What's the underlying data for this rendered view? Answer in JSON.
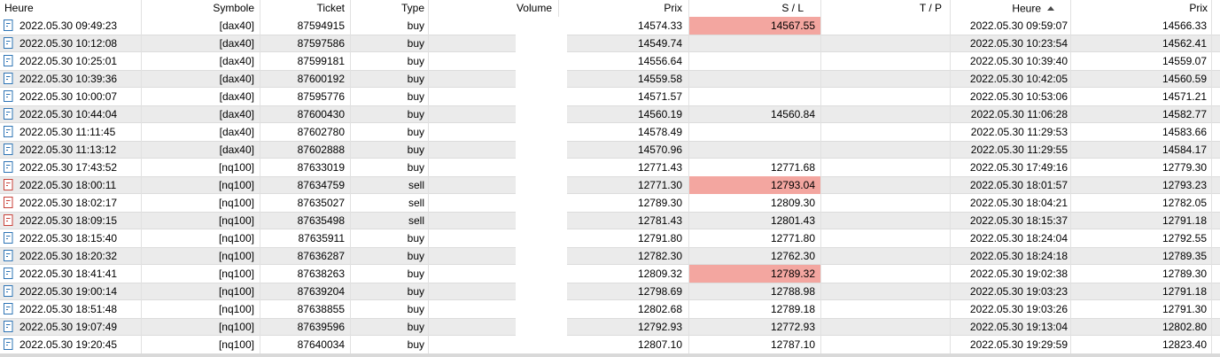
{
  "columns": [
    {
      "label": "Heure"
    },
    {
      "label": "Symbole"
    },
    {
      "label": "Ticket"
    },
    {
      "label": "Type"
    },
    {
      "label": "Volume"
    },
    {
      "label": "Prix"
    },
    {
      "label": "S / L"
    },
    {
      "label": "T / P"
    },
    {
      "label": "Heure",
      "sort": "asc"
    },
    {
      "label": "Prix"
    }
  ],
  "colors": {
    "buy_icon": "#2e74b5",
    "sell_icon": "#c8423a",
    "sl_highlight": "#f3a6a0",
    "stripe": "#ebebeb"
  },
  "rows": [
    {
      "icon": "buy-deal-icon",
      "time_open": "2022.05.30 09:49:23",
      "symbol": "[dax40]",
      "ticket": "87594915",
      "type": "buy",
      "volume": "",
      "price_open": "14574.33",
      "sl": "14567.55",
      "sl_highlight": true,
      "tp": "",
      "time_close": "2022.05.30 09:59:07",
      "price_close": "14566.33"
    },
    {
      "icon": "buy-deal-icon",
      "time_open": "2022.05.30 10:12:08",
      "symbol": "[dax40]",
      "ticket": "87597586",
      "type": "buy",
      "volume": "",
      "price_open": "14549.74",
      "sl": "",
      "sl_highlight": false,
      "tp": "",
      "time_close": "2022.05.30 10:23:54",
      "price_close": "14562.41"
    },
    {
      "icon": "buy-deal-icon",
      "time_open": "2022.05.30 10:25:01",
      "symbol": "[dax40]",
      "ticket": "87599181",
      "type": "buy",
      "volume": "",
      "price_open": "14556.64",
      "sl": "",
      "sl_highlight": false,
      "tp": "",
      "time_close": "2022.05.30 10:39:40",
      "price_close": "14559.07"
    },
    {
      "icon": "buy-deal-icon",
      "time_open": "2022.05.30 10:39:36",
      "symbol": "[dax40]",
      "ticket": "87600192",
      "type": "buy",
      "volume": "",
      "price_open": "14559.58",
      "sl": "",
      "sl_highlight": false,
      "tp": "",
      "time_close": "2022.05.30 10:42:05",
      "price_close": "14560.59"
    },
    {
      "icon": "buy-deal-icon",
      "time_open": "2022.05.30 10:00:07",
      "symbol": "[dax40]",
      "ticket": "87595776",
      "type": "buy",
      "volume": "",
      "price_open": "14571.57",
      "sl": "",
      "sl_highlight": false,
      "tp": "",
      "time_close": "2022.05.30 10:53:06",
      "price_close": "14571.21"
    },
    {
      "icon": "buy-deal-icon",
      "time_open": "2022.05.30 10:44:04",
      "symbol": "[dax40]",
      "ticket": "87600430",
      "type": "buy",
      "volume": "",
      "price_open": "14560.19",
      "sl": "14560.84",
      "sl_highlight": false,
      "tp": "",
      "time_close": "2022.05.30 11:06:28",
      "price_close": "14582.77"
    },
    {
      "icon": "buy-deal-icon",
      "time_open": "2022.05.30 11:11:45",
      "symbol": "[dax40]",
      "ticket": "87602780",
      "type": "buy",
      "volume": "",
      "price_open": "14578.49",
      "sl": "",
      "sl_highlight": false,
      "tp": "",
      "time_close": "2022.05.30 11:29:53",
      "price_close": "14583.66"
    },
    {
      "icon": "buy-deal-icon",
      "time_open": "2022.05.30 11:13:12",
      "symbol": "[dax40]",
      "ticket": "87602888",
      "type": "buy",
      "volume": "",
      "price_open": "14570.96",
      "sl": "",
      "sl_highlight": false,
      "tp": "",
      "time_close": "2022.05.30 11:29:55",
      "price_close": "14584.17"
    },
    {
      "icon": "buy-deal-icon",
      "time_open": "2022.05.30 17:43:52",
      "symbol": "[nq100]",
      "ticket": "87633019",
      "type": "buy",
      "volume": "",
      "price_open": "12771.43",
      "sl": "12771.68",
      "sl_highlight": false,
      "tp": "",
      "time_close": "2022.05.30 17:49:16",
      "price_close": "12779.30"
    },
    {
      "icon": "sell-deal-icon",
      "time_open": "2022.05.30 18:00:11",
      "symbol": "[nq100]",
      "ticket": "87634759",
      "type": "sell",
      "volume": "",
      "price_open": "12771.30",
      "sl": "12793.04",
      "sl_highlight": true,
      "tp": "",
      "time_close": "2022.05.30 18:01:57",
      "price_close": "12793.23"
    },
    {
      "icon": "sell-deal-icon",
      "time_open": "2022.05.30 18:02:17",
      "symbol": "[nq100]",
      "ticket": "87635027",
      "type": "sell",
      "volume": "",
      "price_open": "12789.30",
      "sl": "12809.30",
      "sl_highlight": false,
      "tp": "",
      "time_close": "2022.05.30 18:04:21",
      "price_close": "12782.05"
    },
    {
      "icon": "sell-deal-icon",
      "time_open": "2022.05.30 18:09:15",
      "symbol": "[nq100]",
      "ticket": "87635498",
      "type": "sell",
      "volume": "",
      "price_open": "12781.43",
      "sl": "12801.43",
      "sl_highlight": false,
      "tp": "",
      "time_close": "2022.05.30 18:15:37",
      "price_close": "12791.18"
    },
    {
      "icon": "buy-deal-icon",
      "time_open": "2022.05.30 18:15:40",
      "symbol": "[nq100]",
      "ticket": "87635911",
      "type": "buy",
      "volume": "",
      "price_open": "12791.80",
      "sl": "12771.80",
      "sl_highlight": false,
      "tp": "",
      "time_close": "2022.05.30 18:24:04",
      "price_close": "12792.55"
    },
    {
      "icon": "buy-deal-icon",
      "time_open": "2022.05.30 18:20:32",
      "symbol": "[nq100]",
      "ticket": "87636287",
      "type": "buy",
      "volume": "",
      "price_open": "12782.30",
      "sl": "12762.30",
      "sl_highlight": false,
      "tp": "",
      "time_close": "2022.05.30 18:24:18",
      "price_close": "12789.35"
    },
    {
      "icon": "buy-deal-icon",
      "time_open": "2022.05.30 18:41:41",
      "symbol": "[nq100]",
      "ticket": "87638263",
      "type": "buy",
      "volume": "",
      "price_open": "12809.32",
      "sl": "12789.32",
      "sl_highlight": true,
      "tp": "",
      "time_close": "2022.05.30 19:02:38",
      "price_close": "12789.30"
    },
    {
      "icon": "buy-deal-icon",
      "time_open": "2022.05.30 19:00:14",
      "symbol": "[nq100]",
      "ticket": "87639204",
      "type": "buy",
      "volume": "",
      "price_open": "12798.69",
      "sl": "12788.98",
      "sl_highlight": false,
      "tp": "",
      "time_close": "2022.05.30 19:03:23",
      "price_close": "12791.18"
    },
    {
      "icon": "buy-deal-icon",
      "time_open": "2022.05.30 18:51:48",
      "symbol": "[nq100]",
      "ticket": "87638855",
      "type": "buy",
      "volume": "",
      "price_open": "12802.68",
      "sl": "12789.18",
      "sl_highlight": false,
      "tp": "",
      "time_close": "2022.05.30 19:03:26",
      "price_close": "12791.30"
    },
    {
      "icon": "buy-deal-icon",
      "time_open": "2022.05.30 19:07:49",
      "symbol": "[nq100]",
      "ticket": "87639596",
      "type": "buy",
      "volume": "",
      "price_open": "12792.93",
      "sl": "12772.93",
      "sl_highlight": false,
      "tp": "",
      "time_close": "2022.05.30 19:13:04",
      "price_close": "12802.80"
    },
    {
      "icon": "buy-deal-icon",
      "time_open": "2022.05.30 19:20:45",
      "symbol": "[nq100]",
      "ticket": "87640034",
      "type": "buy",
      "volume": "",
      "price_open": "12807.10",
      "sl": "12787.10",
      "sl_highlight": false,
      "tp": "",
      "time_close": "2022.05.30 19:29:59",
      "price_close": "12823.40"
    }
  ]
}
